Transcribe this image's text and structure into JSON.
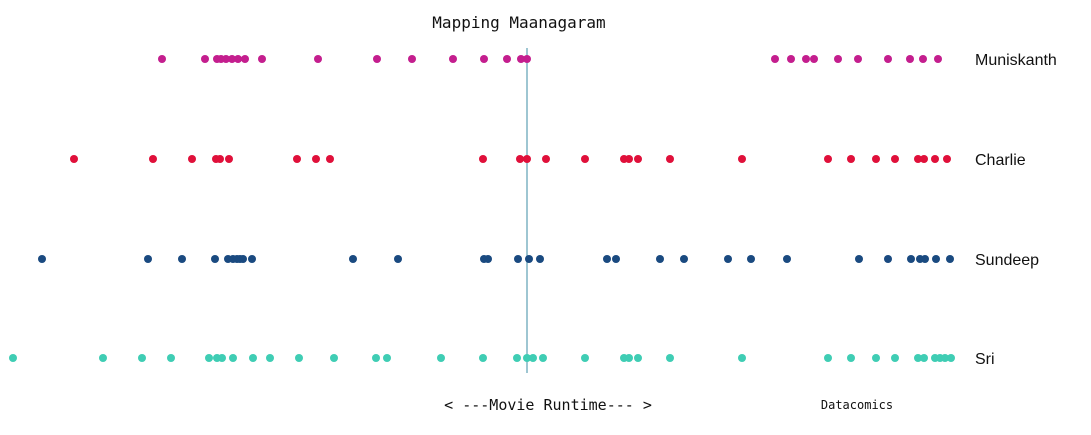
{
  "chart_data": {
    "type": "scatter",
    "title": "Mapping Maanagaram",
    "xlabel": "< ---Movie Runtime--- >",
    "credit": "Datacomics",
    "xlim": [
      0,
      1070
    ],
    "midpoint": 527,
    "series": [
      {
        "name": "Muniskanth",
        "color": "#c41e8e",
        "x": [
          162,
          205,
          217,
          221,
          226,
          232,
          238,
          245,
          262,
          318,
          377,
          412,
          453,
          484,
          507,
          521,
          527,
          775,
          791,
          806,
          814,
          838,
          858,
          888,
          910,
          923,
          938
        ]
      },
      {
        "name": "Charlie",
        "color": "#e0103a",
        "x": [
          74,
          153,
          192,
          216,
          220,
          229,
          297,
          316,
          330,
          483,
          520,
          527,
          546,
          585,
          624,
          629,
          638,
          670,
          742,
          828,
          851,
          876,
          895,
          918,
          924,
          935,
          947
        ]
      },
      {
        "name": "Sundeep",
        "color": "#1a4a80",
        "x": [
          42,
          148,
          182,
          215,
          228,
          233,
          237,
          240,
          243,
          252,
          353,
          398,
          484,
          488,
          518,
          529,
          540,
          607,
          616,
          660,
          684,
          728,
          751,
          787,
          859,
          888,
          911,
          920,
          925,
          936,
          950
        ]
      },
      {
        "name": "Sri",
        "color": "#3fcdb4",
        "x": [
          13,
          103,
          142,
          171,
          209,
          217,
          222,
          233,
          253,
          270,
          299,
          334,
          376,
          387,
          441,
          483,
          517,
          527,
          533,
          543,
          585,
          624,
          629,
          638,
          670,
          742,
          828,
          851,
          876,
          895,
          918,
          924,
          935,
          940,
          945,
          951
        ]
      }
    ]
  }
}
